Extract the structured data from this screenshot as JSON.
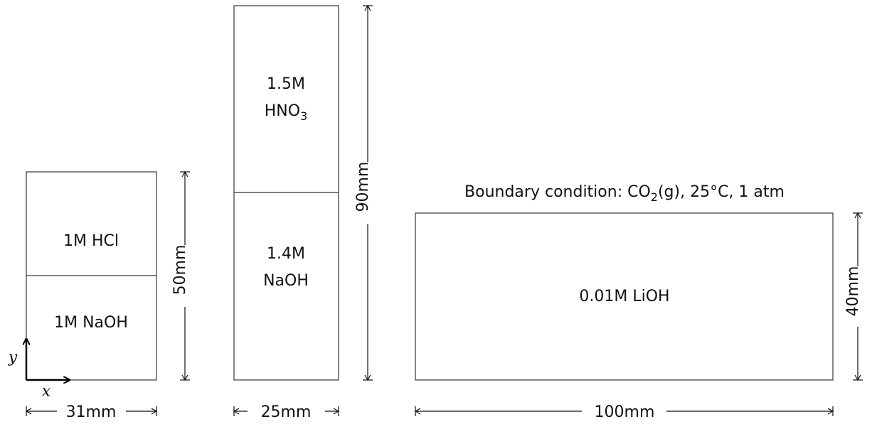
{
  "domains": {
    "domain1": {
      "top_label": "1M HCl",
      "bottom_label": "1M NaOH",
      "width_label": "31mm",
      "height_label": "50mm"
    },
    "domain2": {
      "top_label_line1": "1.5M",
      "top_label_line2_base": "HNO",
      "top_label_line2_sub": "3",
      "bottom_label_line1": "1.4M",
      "bottom_label_line2": "NaOH",
      "width_label": "25mm",
      "height_label": "90mm"
    },
    "domain3": {
      "label": "0.01M LiOH",
      "width_label": "100mm",
      "height_label": "40mm",
      "boundary_prefix": "Boundary condition:  CO",
      "boundary_sub": "2",
      "boundary_suffix": "(g), 25°C, 1 atm"
    }
  },
  "axes": {
    "x_label": "x",
    "y_label": "y"
  }
}
